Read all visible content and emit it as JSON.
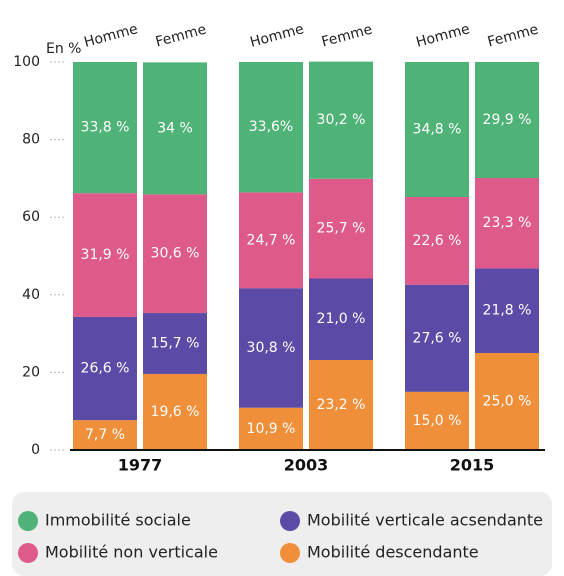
{
  "chart_data": {
    "type": "stacked_bar",
    "y_label": "En %",
    "categories": [
      "Homme",
      "Femme",
      "Homme",
      "Femme",
      "Homme",
      "Femme"
    ],
    "groups": [
      "1977",
      "2003",
      "2015"
    ],
    "ylim": [
      0,
      100
    ],
    "yticks": [
      0,
      20,
      40,
      60,
      80,
      100
    ],
    "series": [
      {
        "name": "Mobilité descendante",
        "color": "#ef8f3a",
        "values": [
          7.7,
          19.6,
          10.9,
          23.2,
          15.0,
          25.0
        ],
        "value_labels": [
          "7,7 %",
          "19,6 %",
          "10,9 %",
          "23,2 %",
          "15,0 %",
          "25,0 %"
        ]
      },
      {
        "name": "Mobilité verticale acsendante",
        "color": "#5b4aa6",
        "values": [
          26.6,
          15.7,
          30.8,
          21.0,
          27.6,
          21.8
        ],
        "value_labels": [
          "26,6 %",
          "15,7 %",
          "30,8 %",
          "21,0 %",
          "27,6 %",
          "21,8 %"
        ]
      },
      {
        "name": "Mobilité non verticale",
        "color": "#de5a8a",
        "values": [
          31.9,
          30.6,
          24.7,
          25.7,
          22.6,
          23.3
        ],
        "value_labels": [
          "31,9 %",
          "30,6 %",
          "24,7 %",
          "25,7 %",
          "22,6 %",
          "23,3 %"
        ]
      },
      {
        "name": "Immobilité sociale",
        "color": "#4fb377",
        "values": [
          33.8,
          34,
          33.6,
          30.2,
          34.8,
          29.9
        ],
        "value_labels": [
          "33,8 %",
          "34 %",
          "33,6%",
          "30,2 %",
          "34,8 %",
          "29,9 %"
        ]
      }
    ]
  }
}
